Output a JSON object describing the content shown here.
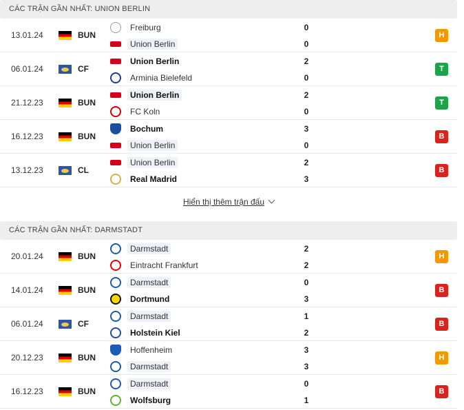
{
  "sections": [
    {
      "title": "CÁC TRẬN GẦN NHẤT: UNION BERLIN",
      "matches": [
        {
          "date": "13.01.24",
          "flag": "de",
          "comp": "BUN",
          "home": "Freiburg",
          "home_logo": "freiburg",
          "home_bold": false,
          "home_hl": false,
          "away": "Union Berlin",
          "away_logo": "union",
          "away_bold": false,
          "away_hl": true,
          "home_score": "0",
          "away_score": "0",
          "result": "H",
          "result_color": "#f29900"
        },
        {
          "date": "06.01.24",
          "flag": "eu",
          "comp": "CF",
          "home": "Union Berlin",
          "home_logo": "union",
          "home_bold": true,
          "home_hl": false,
          "away": "Arminia Bielefeld",
          "away_logo": "arminia",
          "away_bold": false,
          "away_hl": false,
          "home_score": "2",
          "away_score": "0",
          "result": "T",
          "result_color": "#1fa34a"
        },
        {
          "date": "21.12.23",
          "flag": "de",
          "comp": "BUN",
          "home": "Union Berlin",
          "home_logo": "union",
          "home_bold": true,
          "home_hl": true,
          "away": "FC Koln",
          "away_logo": "koln",
          "away_bold": false,
          "away_hl": false,
          "home_score": "2",
          "away_score": "0",
          "result": "T",
          "result_color": "#1fa34a"
        },
        {
          "date": "16.12.23",
          "flag": "de",
          "comp": "BUN",
          "home": "Bochum",
          "home_logo": "bochum",
          "home_bold": true,
          "home_hl": false,
          "away": "Union Berlin",
          "away_logo": "union",
          "away_bold": false,
          "away_hl": true,
          "home_score": "3",
          "away_score": "0",
          "result": "B",
          "result_color": "#d9231d"
        },
        {
          "date": "13.12.23",
          "flag": "eu",
          "comp": "CL",
          "home": "Union Berlin",
          "home_logo": "union",
          "home_bold": false,
          "home_hl": true,
          "away": "Real Madrid",
          "away_logo": "real",
          "away_bold": true,
          "away_hl": false,
          "home_score": "2",
          "away_score": "3",
          "result": "B",
          "result_color": "#d9231d"
        }
      ]
    },
    {
      "title": "CÁC TRẬN GẦN NHẤT: DARMSTADT",
      "matches": [
        {
          "date": "20.01.24",
          "flag": "de",
          "comp": "BUN",
          "home": "Darmstadt",
          "home_logo": "darm",
          "home_bold": false,
          "home_hl": true,
          "away": "Eintracht Frankfurt",
          "away_logo": "eintracht",
          "away_bold": false,
          "away_hl": false,
          "home_score": "2",
          "away_score": "2",
          "result": "H",
          "result_color": "#f29900"
        },
        {
          "date": "14.01.24",
          "flag": "de",
          "comp": "BUN",
          "home": "Darmstadt",
          "home_logo": "darm",
          "home_bold": false,
          "home_hl": true,
          "away": "Dortmund",
          "away_logo": "dort",
          "away_bold": true,
          "away_hl": false,
          "home_score": "0",
          "away_score": "3",
          "result": "B",
          "result_color": "#d9231d"
        },
        {
          "date": "06.01.24",
          "flag": "eu",
          "comp": "CF",
          "home": "Darmstadt",
          "home_logo": "darm",
          "home_bold": false,
          "home_hl": true,
          "away": "Holstein Kiel",
          "away_logo": "kiel",
          "away_bold": true,
          "away_hl": false,
          "home_score": "1",
          "away_score": "2",
          "result": "B",
          "result_color": "#d9231d"
        },
        {
          "date": "20.12.23",
          "flag": "de",
          "comp": "BUN",
          "home": "Hoffenheim",
          "home_logo": "hoff",
          "home_bold": false,
          "home_hl": false,
          "away": "Darmstadt",
          "away_logo": "darm",
          "away_bold": false,
          "away_hl": true,
          "home_score": "3",
          "away_score": "3",
          "result": "H",
          "result_color": "#f29900"
        },
        {
          "date": "16.12.23",
          "flag": "de",
          "comp": "BUN",
          "home": "Darmstadt",
          "home_logo": "darm",
          "home_bold": false,
          "home_hl": true,
          "away": "Wolfsburg",
          "away_logo": "wolf",
          "away_bold": true,
          "away_hl": false,
          "home_score": "0",
          "away_score": "1",
          "result": "B",
          "result_color": "#d9231d"
        }
      ]
    }
  ],
  "show_more": {
    "label": "Hiển thị thêm trận đấu"
  }
}
